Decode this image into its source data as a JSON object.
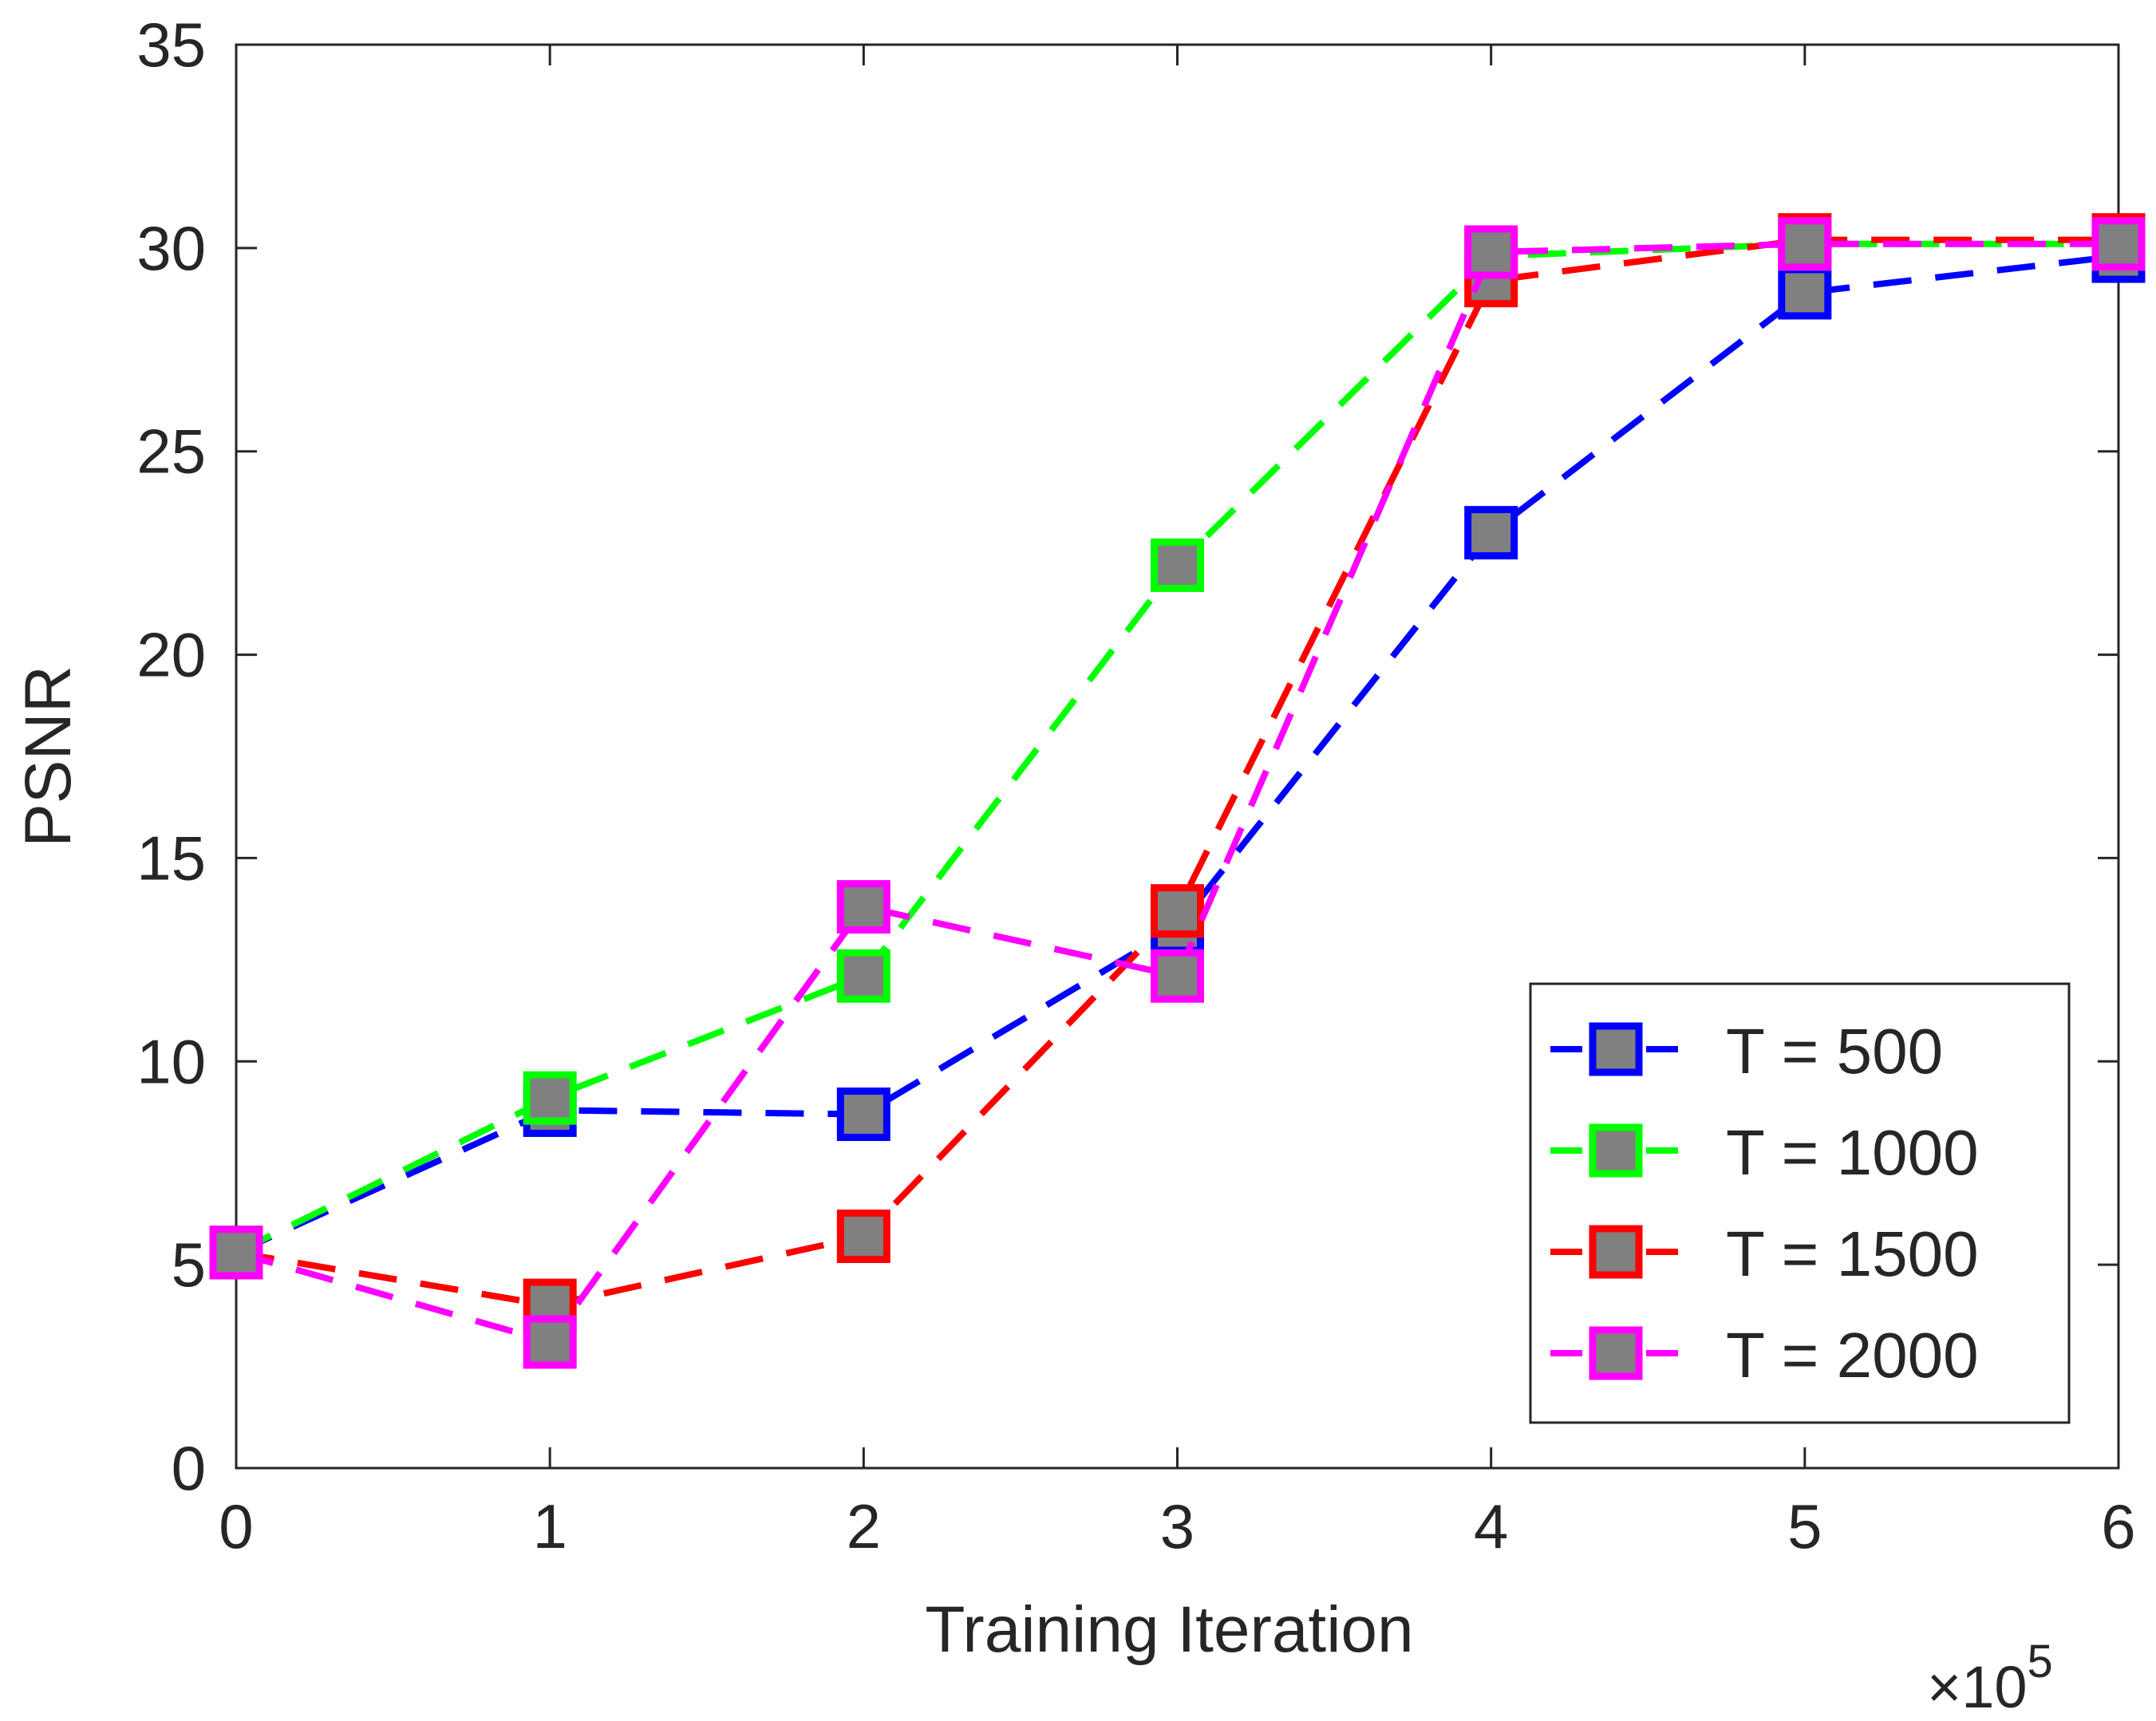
{
  "chart_data": {
    "type": "line",
    "title": "",
    "xlabel": "Training Iteration",
    "ylabel": "PSNR",
    "x_multiplier": {
      "base": "10",
      "exponent": "5",
      "prefix": "×"
    },
    "xlim": [
      0,
      6
    ],
    "ylim": [
      0,
      35
    ],
    "x_ticks": [
      0,
      1,
      2,
      3,
      4,
      5,
      6
    ],
    "y_ticks": [
      0,
      5,
      10,
      15,
      20,
      25,
      30,
      35
    ],
    "x_tick_labels": [
      "0",
      "1",
      "2",
      "3",
      "4",
      "5",
      "6"
    ],
    "y_tick_labels": [
      "0",
      "5",
      "10",
      "15",
      "20",
      "25",
      "30",
      "35"
    ],
    "grid": false,
    "legend_position": "bottom-right",
    "marker": {
      "shape": "square",
      "fill": "#808080"
    },
    "x": [
      0,
      1,
      2,
      3,
      4,
      5,
      6
    ],
    "series": [
      {
        "name": "T = 500",
        "color": "#0000ff",
        "values": [
          5.3,
          8.8,
          8.7,
          13.3,
          23.0,
          28.9,
          29.8
        ]
      },
      {
        "name": "T = 1000",
        "color": "#00ff00",
        "values": [
          5.3,
          9.1,
          12.1,
          22.2,
          29.8,
          30.1,
          30.1
        ]
      },
      {
        "name": "T = 1500",
        "color": "#ff0000",
        "values": [
          5.3,
          4.0,
          5.7,
          13.7,
          29.2,
          30.2,
          30.2
        ]
      },
      {
        "name": "T = 2000",
        "color": "#ff00ff",
        "values": [
          5.3,
          3.1,
          13.8,
          12.1,
          29.9,
          30.1,
          30.1
        ]
      }
    ]
  }
}
